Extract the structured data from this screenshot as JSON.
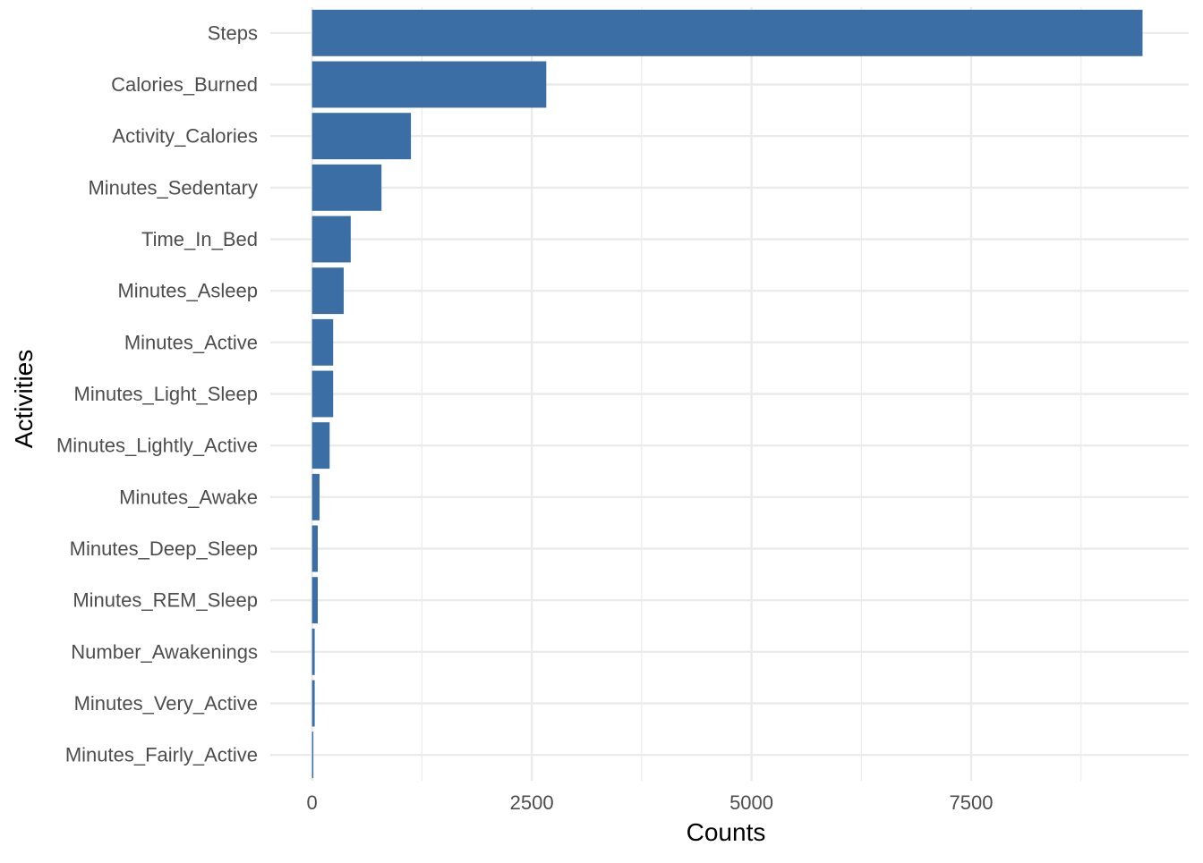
{
  "chart_data": {
    "type": "bar",
    "orientation": "horizontal",
    "categories": [
      "Steps",
      "Calories_Burned",
      "Activity_Calories",
      "Minutes_Sedentary",
      "Time_In_Bed",
      "Minutes_Asleep",
      "Minutes_Active",
      "Minutes_Light_Sleep",
      "Minutes_Lightly_Active",
      "Minutes_Awake",
      "Minutes_Deep_Sleep",
      "Minutes_REM_Sleep",
      "Number_Awakenings",
      "Minutes_Very_Active",
      "Minutes_Fairly_Active"
    ],
    "values": [
      9450,
      2665,
      1125,
      790,
      440,
      360,
      240,
      240,
      200,
      85,
      65,
      65,
      30,
      30,
      15
    ],
    "title": "",
    "xlabel": "Counts",
    "ylabel": "Activities",
    "xlim": [
      -475,
      9975
    ],
    "xticks": [
      0,
      2500,
      5000,
      7500
    ],
    "xtick_labels": [
      "0",
      "2500",
      "5000",
      "7500"
    ],
    "grid": true,
    "legend": "none",
    "bar_color": "#3a6ea5",
    "grid_color": "#ebebeb"
  }
}
